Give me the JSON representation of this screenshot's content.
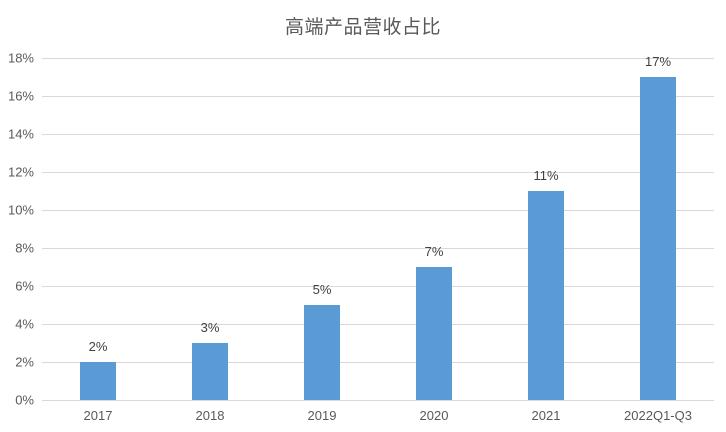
{
  "chart_data": {
    "type": "bar",
    "title": "高端产品营收占比",
    "categories": [
      "2017",
      "2018",
      "2019",
      "2020",
      "2021",
      "2022Q1-Q3"
    ],
    "values": [
      2,
      3,
      5,
      7,
      11,
      17
    ],
    "value_labels": [
      "2%",
      "3%",
      "5%",
      "7%",
      "11%",
      "17%"
    ],
    "ylim": [
      0,
      18
    ],
    "ytick_step": 2,
    "ytick_labels": [
      "0%",
      "2%",
      "4%",
      "6%",
      "8%",
      "10%",
      "12%",
      "14%",
      "16%",
      "18%"
    ],
    "xlabel": "",
    "ylabel": "",
    "grid": "horizontal",
    "legend": "none",
    "colors": {
      "bar": "#5B9BD5",
      "gridline": "#D9D9D9",
      "axis_line": "#D9D9D9",
      "title": "#595959",
      "axis_label": "#595959",
      "data_label": "#404040",
      "background": "#FFFFFF"
    }
  }
}
